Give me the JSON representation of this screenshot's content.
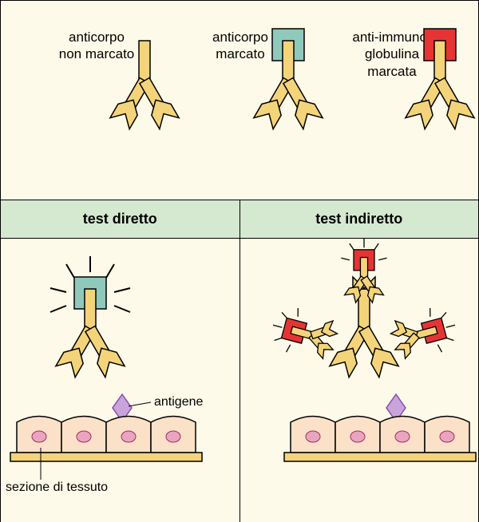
{
  "legend": {
    "items": [
      {
        "label": "anticorpo\nnon marcato",
        "marker": "none"
      },
      {
        "label": "anticorpo\nmarcato",
        "marker": "teal"
      },
      {
        "label": "anti-immuno-\nglobulina\nmarcata",
        "marker": "red"
      }
    ]
  },
  "tests": {
    "direct_label": "test diretto",
    "indirect_label": "test indiretto",
    "antigen_label": "antigene",
    "tissue_label": "sezione di tessuto"
  },
  "colors": {
    "antibody_fill": "#f4d47a",
    "antibody_stroke": "#000000",
    "marker_teal": "#8fc9bc",
    "marker_red": "#e63434",
    "tissue_fill": "#fae1c7",
    "tissue_stroke": "#000000",
    "nucleus_fill": "#e9a5c0",
    "nucleus_stroke": "#a03060",
    "antigen_fill": "#c9a4dc",
    "antigen_stroke": "#8a4ca8",
    "slide_fill": "#f4d47a",
    "panel_bg": "#fdfae9",
    "header_bg": "#d5e8d0",
    "burst_stroke": "#000000"
  },
  "style": {
    "stroke_width": 1.5,
    "font_size_label": 17,
    "font_size_header": 18,
    "font_size_small": 16
  }
}
